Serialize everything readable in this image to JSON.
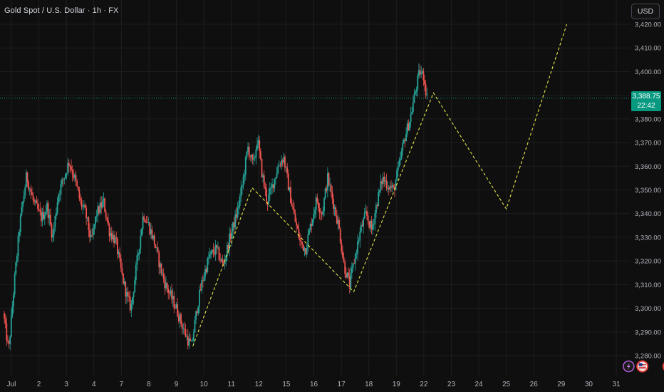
{
  "header": {
    "title": "Gold Spot / U.S. Dollar · 1h · FX",
    "currency_label": "USD"
  },
  "last_price": {
    "price": "3,388.75",
    "countdown": "22:42",
    "value": 3388.75
  },
  "colors": {
    "background": "#0f0f0f",
    "up": "#26a69a",
    "down": "#ef5350",
    "projection": "#e8e84a",
    "last_price_line": "#089981",
    "grid": "#1e1e1e"
  },
  "events": [
    {
      "icon": "lightning-icon",
      "day": 22.45
    },
    {
      "icon": "us-flag-icon",
      "day": 22.95
    },
    {
      "icon": "us-flag-icon",
      "day": 23.9
    },
    {
      "icon": "us-flag-icon",
      "day": 25.8
    }
  ],
  "chart_data": {
    "type": "candlestick",
    "symbol": "Gold Spot / U.S. Dollar",
    "interval": "1h",
    "y_axis": {
      "min": 3274,
      "max": 3426,
      "ticks": [
        "3,280.00",
        "3,290.00",
        "3,300.00",
        "3,310.00",
        "3,320.00",
        "3,330.00",
        "3,340.00",
        "3,350.00",
        "3,360.00",
        "3,370.00",
        "3,380.00",
        "3,390.00",
        "3,400.00",
        "3,410.00",
        "3,420.00"
      ],
      "tick_values": [
        3280,
        3290,
        3300,
        3310,
        3320,
        3330,
        3340,
        3350,
        3360,
        3370,
        3380,
        3390,
        3400,
        3410,
        3420
      ],
      "position": "right"
    },
    "x_axis": {
      "ticks": [
        "Jul",
        "2",
        "3",
        "4",
        "7",
        "8",
        "9",
        "10",
        "11",
        "12",
        "15",
        "16",
        "17",
        "18",
        "19",
        "22",
        "23",
        "24",
        "25",
        "26",
        "29",
        "30",
        "31"
      ],
      "tick_positions": [
        0,
        1,
        2,
        3,
        4,
        5,
        6,
        7,
        8,
        9,
        10,
        11,
        12,
        13,
        14,
        15,
        16,
        17,
        18,
        19,
        20,
        21,
        22
      ]
    },
    "grid": true,
    "price_path": [
      [
        -0.3,
        3298
      ],
      [
        -0.1,
        3282
      ],
      [
        0.1,
        3310
      ],
      [
        0.3,
        3335
      ],
      [
        0.55,
        3356
      ],
      [
        0.8,
        3345
      ],
      [
        1.1,
        3338
      ],
      [
        1.3,
        3343
      ],
      [
        1.5,
        3330
      ],
      [
        1.7,
        3348
      ],
      [
        1.9,
        3355
      ],
      [
        2.1,
        3362
      ],
      [
        2.3,
        3355
      ],
      [
        2.5,
        3345
      ],
      [
        2.7,
        3340
      ],
      [
        2.9,
        3328
      ],
      [
        3.1,
        3340
      ],
      [
        3.35,
        3345
      ],
      [
        3.55,
        3333
      ],
      [
        3.8,
        3328
      ],
      [
        4.0,
        3315
      ],
      [
        4.2,
        3305
      ],
      [
        4.35,
        3300
      ],
      [
        4.55,
        3318
      ],
      [
        4.8,
        3340
      ],
      [
        5.0,
        3335
      ],
      [
        5.2,
        3328
      ],
      [
        5.4,
        3318
      ],
      [
        5.6,
        3310
      ],
      [
        5.8,
        3305
      ],
      [
        6.0,
        3300
      ],
      [
        6.2,
        3293
      ],
      [
        6.4,
        3287
      ],
      [
        6.55,
        3284
      ],
      [
        6.75,
        3300
      ],
      [
        6.95,
        3312
      ],
      [
        7.2,
        3322
      ],
      [
        7.45,
        3325
      ],
      [
        7.7,
        3318
      ],
      [
        7.95,
        3330
      ],
      [
        8.2,
        3340
      ],
      [
        8.4,
        3352
      ],
      [
        8.6,
        3368
      ],
      [
        8.8,
        3360
      ],
      [
        8.95,
        3372
      ],
      [
        9.1,
        3358
      ],
      [
        9.3,
        3345
      ],
      [
        9.5,
        3352
      ],
      [
        9.7,
        3360
      ],
      [
        9.9,
        3364
      ],
      [
        10.1,
        3350
      ],
      [
        10.3,
        3338
      ],
      [
        10.5,
        3328
      ],
      [
        10.7,
        3325
      ],
      [
        10.9,
        3336
      ],
      [
        11.1,
        3346
      ],
      [
        11.3,
        3340
      ],
      [
        11.5,
        3355
      ],
      [
        11.7,
        3345
      ],
      [
        11.9,
        3335
      ],
      [
        12.1,
        3318
      ],
      [
        12.3,
        3310
      ],
      [
        12.5,
        3322
      ],
      [
        12.7,
        3333
      ],
      [
        12.9,
        3340
      ],
      [
        13.1,
        3333
      ],
      [
        13.3,
        3345
      ],
      [
        13.5,
        3355
      ],
      [
        13.7,
        3352
      ],
      [
        13.9,
        3350
      ],
      [
        14.1,
        3360
      ],
      [
        14.3,
        3372
      ],
      [
        14.5,
        3380
      ],
      [
        14.7,
        3392
      ],
      [
        14.85,
        3400
      ],
      [
        15.0,
        3398
      ],
      [
        15.15,
        3386
      ]
    ],
    "projection_points": [
      {
        "x": 6.6,
        "y": 3284
      },
      {
        "x": 8.75,
        "y": 3351
      },
      {
        "x": 12.45,
        "y": 3307
      },
      {
        "x": 15.35,
        "y": 3391
      },
      {
        "x": 18.0,
        "y": 3342
      },
      {
        "x": 20.2,
        "y": 3420
      }
    ],
    "last_price": 3388.75,
    "last_price_label": "3,388.75",
    "countdown_label": "22:42"
  }
}
